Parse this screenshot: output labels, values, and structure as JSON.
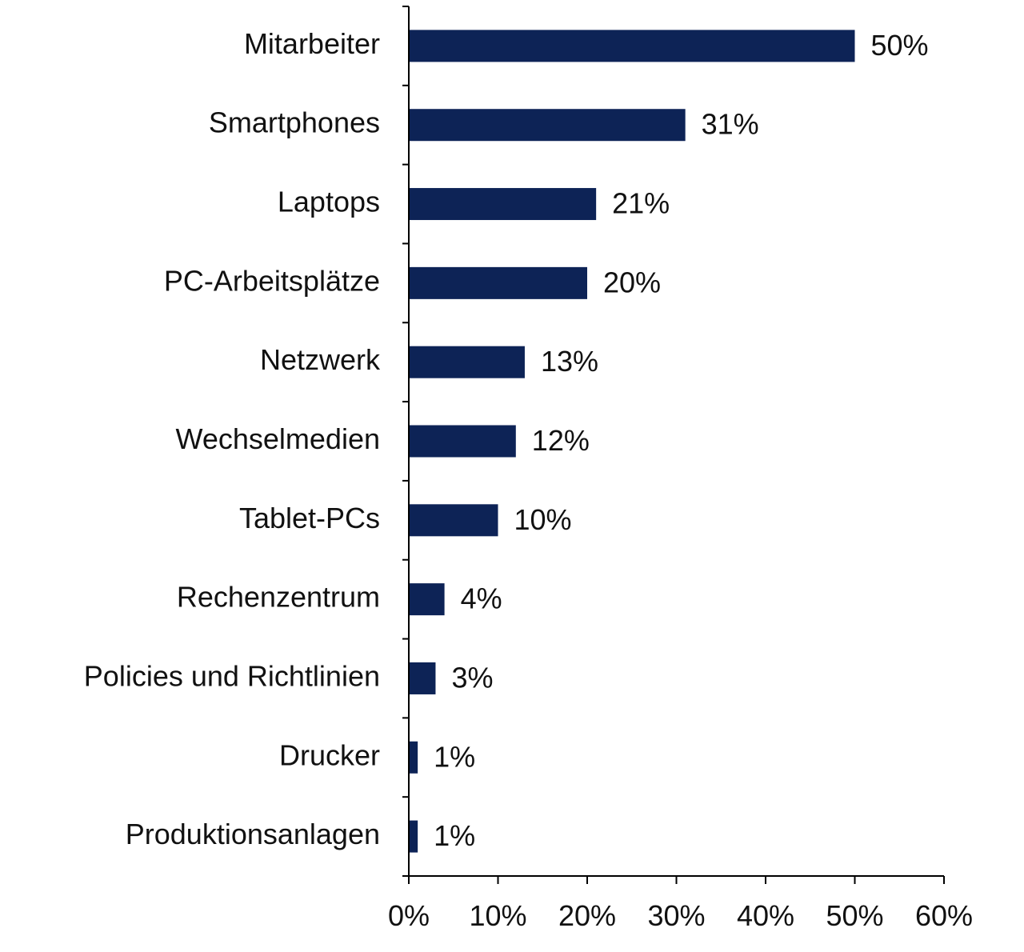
{
  "chart_data": {
    "type": "bar",
    "orientation": "horizontal",
    "categories": [
      "Mitarbeiter",
      "Smartphones",
      "Laptops",
      "PC-Arbeitsplätze",
      "Netzwerk",
      "Wechselmedien",
      "Tablet-PCs",
      "Rechenzentrum",
      "Policies und Richtlinien",
      "Drucker",
      "Produktionsanlagen"
    ],
    "values": [
      50,
      31,
      21,
      20,
      13,
      12,
      10,
      4,
      3,
      1,
      1
    ],
    "value_labels": [
      "50%",
      "31%",
      "21%",
      "20%",
      "13%",
      "12%",
      "10%",
      "4%",
      "3%",
      "1%",
      "1%"
    ],
    "xlim": [
      0,
      60
    ],
    "xticks": [
      0,
      10,
      20,
      30,
      40,
      50,
      60
    ],
    "xtick_labels": [
      "0%",
      "10%",
      "20%",
      "30%",
      "40%",
      "50%",
      "60%"
    ],
    "bar_color": "#0d2356",
    "grid": false,
    "legend": "none"
  }
}
